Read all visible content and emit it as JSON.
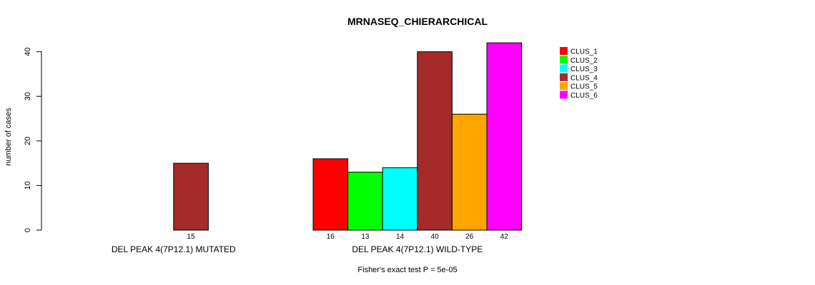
{
  "chart_data": {
    "type": "bar",
    "title": "MRNASEQ_CHIERARCHICAL",
    "ylabel": "number of cases",
    "xlabel": "",
    "ylim": [
      0,
      42
    ],
    "yticks": [
      0,
      10,
      20,
      30,
      40
    ],
    "grid": false,
    "legend_position": "top-right",
    "footnote": "Fisher's exact test P = 5e-05",
    "series": [
      {
        "name": "CLUS_1",
        "color": "#ff0000"
      },
      {
        "name": "CLUS_2",
        "color": "#00ff00"
      },
      {
        "name": "CLUS_3",
        "color": "#00ffff"
      },
      {
        "name": "CLUS_4",
        "color": "#a52a2a"
      },
      {
        "name": "CLUS_5",
        "color": "#ffa500"
      },
      {
        "name": "CLUS_6",
        "color": "#ff00ff"
      }
    ],
    "groups": [
      {
        "label": "DEL PEAK  4(7P12.1) MUTATED",
        "values": [
          0,
          0,
          0,
          15,
          0,
          0
        ],
        "count_labels": [
          "",
          "",
          "",
          "15",
          "",
          ""
        ]
      },
      {
        "label": "DEL PEAK  4(7P12.1) WILD-TYPE",
        "values": [
          16,
          13,
          14,
          40,
          26,
          42
        ],
        "count_labels": [
          "16",
          "13",
          "14",
          "40",
          "26",
          "42"
        ]
      }
    ]
  }
}
